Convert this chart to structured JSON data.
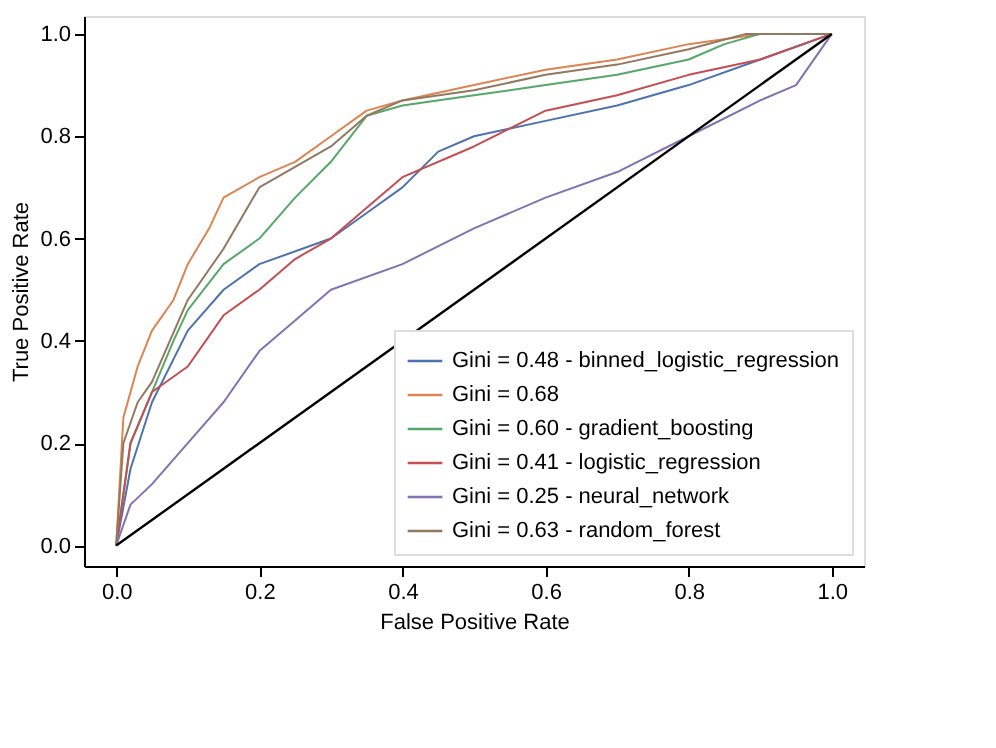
{
  "chart_data": {
    "type": "line",
    "xlabel": "False Positive Rate",
    "ylabel": "True Positive Rate",
    "xlim": [
      -0.045,
      1.045
    ],
    "ylim": [
      -0.04,
      1.035
    ],
    "xticks": [
      {
        "value": 0,
        "label": "0.0"
      },
      0.2,
      0.4,
      0.6,
      0.8,
      {
        "value": 1,
        "label": "1.0"
      }
    ],
    "yticks": [
      {
        "value": 0,
        "label": "0.0"
      },
      0.2,
      0.4,
      0.6,
      0.8,
      {
        "value": 1,
        "label": "1.0"
      }
    ],
    "grid": false,
    "legend": "bottom right",
    "line_style": "solid",
    "marker": "none",
    "series": [
      {
        "name": "Gini = 0.48 - binned_logistic_regression",
        "color": "#4c72b0",
        "x": [
          0,
          0.02,
          0.05,
          0.1,
          0.15,
          0.2,
          0.3,
          0.35,
          0.4,
          0.45,
          0.5,
          0.6,
          0.7,
          0.8,
          0.9,
          1
        ],
        "values": [
          0,
          0.15,
          0.28,
          0.42,
          0.5,
          0.55,
          0.6,
          0.65,
          0.7,
          0.77,
          0.8,
          0.83,
          0.86,
          0.9,
          0.95,
          1
        ]
      },
      {
        "name": "Gini = 0.68",
        "color": "#dd8452",
        "x": [
          0,
          0.01,
          0.03,
          0.05,
          0.08,
          0.1,
          0.13,
          0.15,
          0.2,
          0.25,
          0.3,
          0.35,
          0.4,
          0.5,
          0.6,
          0.7,
          0.8,
          0.9,
          1
        ],
        "values": [
          0,
          0.25,
          0.35,
          0.42,
          0.48,
          0.55,
          0.62,
          0.68,
          0.72,
          0.75,
          0.8,
          0.85,
          0.87,
          0.9,
          0.93,
          0.95,
          0.98,
          1,
          1
        ]
      },
      {
        "name": "Gini = 0.60 - gradient_boosting",
        "color": "#55a868",
        "x": [
          0,
          0.02,
          0.05,
          0.08,
          0.1,
          0.15,
          0.2,
          0.25,
          0.3,
          0.35,
          0.4,
          0.5,
          0.6,
          0.7,
          0.8,
          0.85,
          0.9,
          1
        ],
        "values": [
          0,
          0.2,
          0.3,
          0.4,
          0.46,
          0.55,
          0.6,
          0.68,
          0.75,
          0.84,
          0.86,
          0.88,
          0.9,
          0.92,
          0.95,
          0.98,
          1,
          1
        ]
      },
      {
        "name": "Gini = 0.41 - logistic_regression",
        "color": "#c44e52",
        "x": [
          0,
          0.02,
          0.05,
          0.1,
          0.15,
          0.2,
          0.25,
          0.3,
          0.35,
          0.4,
          0.5,
          0.6,
          0.7,
          0.8,
          0.9,
          1
        ],
        "values": [
          0,
          0.2,
          0.3,
          0.35,
          0.45,
          0.5,
          0.56,
          0.6,
          0.66,
          0.72,
          0.78,
          0.85,
          0.88,
          0.92,
          0.95,
          1
        ]
      },
      {
        "name": "Gini = 0.25 - neural_network",
        "color": "#8172b2",
        "x": [
          0,
          0.02,
          0.05,
          0.1,
          0.15,
          0.2,
          0.25,
          0.3,
          0.4,
          0.5,
          0.6,
          0.7,
          0.8,
          0.9,
          0.95,
          1
        ],
        "values": [
          0,
          0.08,
          0.12,
          0.2,
          0.28,
          0.38,
          0.44,
          0.5,
          0.55,
          0.62,
          0.68,
          0.73,
          0.8,
          0.87,
          0.9,
          1
        ]
      },
      {
        "name": "Gini = 0.63 - random_forest",
        "color": "#937860",
        "x": [
          0,
          0.01,
          0.03,
          0.05,
          0.1,
          0.15,
          0.2,
          0.25,
          0.3,
          0.35,
          0.4,
          0.5,
          0.6,
          0.7,
          0.8,
          0.88,
          1
        ],
        "values": [
          0,
          0.2,
          0.28,
          0.32,
          0.48,
          0.58,
          0.7,
          0.74,
          0.78,
          0.84,
          0.87,
          0.89,
          0.92,
          0.94,
          0.97,
          1,
          1
        ]
      },
      {
        "color": "#000000",
        "x": [
          0,
          1
        ],
        "values": [
          0,
          1
        ]
      }
    ]
  }
}
